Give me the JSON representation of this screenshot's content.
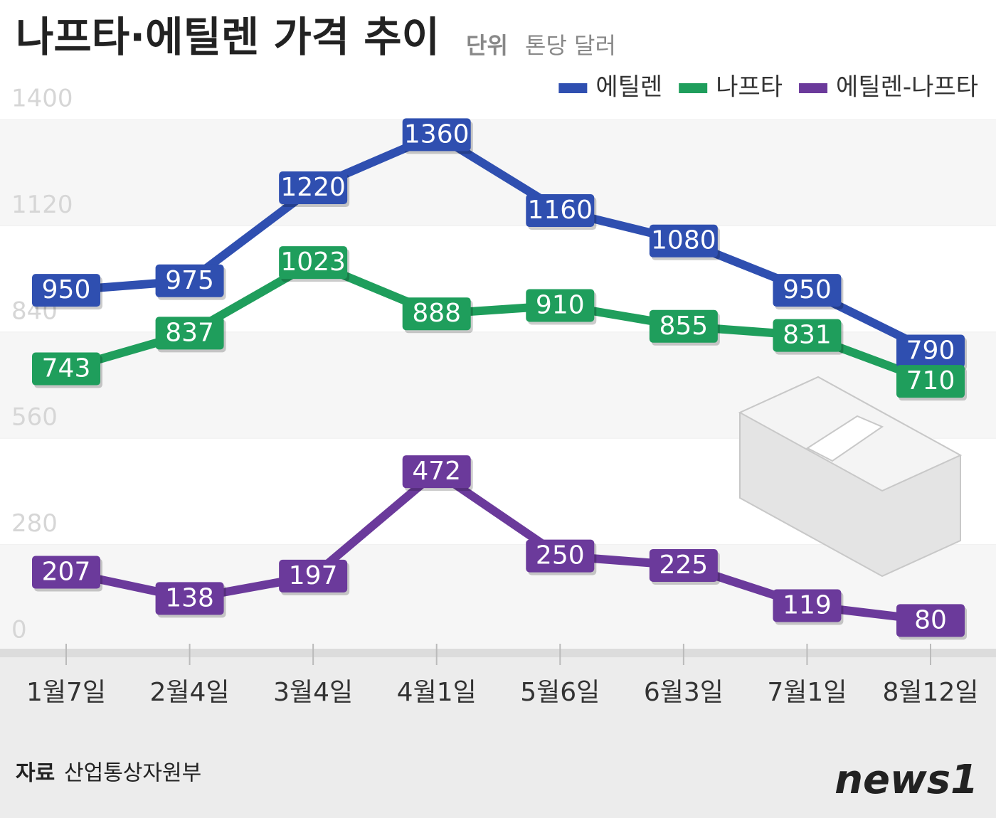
{
  "chart_data": {
    "type": "line",
    "title": "나프타·에틸렌 가격 추이",
    "unit_label": "단위",
    "unit": "톤당 달러",
    "categories": [
      "1월7일",
      "2월4일",
      "3월4일",
      "4월1일",
      "5월6일",
      "6월3일",
      "7월1일",
      "8월12일"
    ],
    "series": [
      {
        "name": "에틸렌",
        "color": "#2f4fb0",
        "values": [
          950,
          975,
          1220,
          1360,
          1160,
          1080,
          950,
          790
        ]
      },
      {
        "name": "나프타",
        "color": "#1f9e5c",
        "values": [
          743,
          837,
          1023,
          888,
          910,
          855,
          831,
          710
        ]
      },
      {
        "name": "에틸렌-나프타",
        "color": "#6b3a9b",
        "values": [
          207,
          138,
          197,
          472,
          250,
          225,
          119,
          80
        ]
      }
    ],
    "ylim": [
      0,
      1400
    ],
    "yticks": [
      0,
      280,
      560,
      840,
      1120,
      1400
    ],
    "legend": "top-right",
    "source_label": "자료",
    "source": "산업통상자원부",
    "logo": "news1"
  }
}
